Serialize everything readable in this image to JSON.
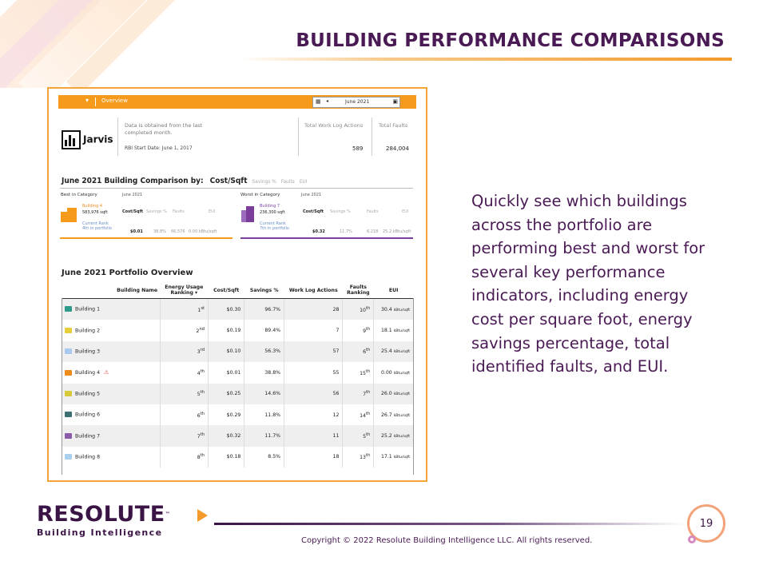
{
  "slide": {
    "title": "BUILDING PERFORMANCE COMPARISONS",
    "description": "Quickly see which buildings across the portfolio are performing best and worst for several key performance indicators, including energy cost per square foot, energy savings percentage, total identified faults, and EUI.",
    "page_number": "19",
    "copyright": "Copyright © 2022 Resolute Building Intelligence LLC. All rights reserved.",
    "brand_name": "RESOLUTE",
    "brand_tm": "™",
    "brand_sub": "Building Intelligence"
  },
  "screenshot": {
    "topbar": {
      "overview_label": "Overview",
      "date": "June 2021"
    },
    "logo_text": "Jarvis",
    "info_text": "Data is obtained from the last completed month.",
    "rbi_start": "RBI Start Date: June 1, 2017",
    "total_work_log_label": "Total Work Log Actions",
    "total_work_log_value": "589",
    "total_faults_label": "Total Faults",
    "total_faults_value": "284,004",
    "comparison": {
      "title": "June 2021 Building Comparison by:",
      "selected": "Cost/Sqft",
      "options": [
        "Savings %",
        "Faults",
        "EUI"
      ],
      "best": {
        "heading": "Best in Category",
        "month": "June 2021",
        "building": "Building 4",
        "sqft": "583,976 sqft",
        "rank_label": "Current Rank",
        "rank": "4th in portfolio",
        "cols": [
          "Cost/Sqft",
          "Savings %",
          "Faults",
          "EUI"
        ],
        "vals": [
          "$0.01",
          "38.8%",
          "66,576",
          "0.00 kBtu/sqft"
        ]
      },
      "worst": {
        "heading": "Worst in Category",
        "month": "June 2021",
        "building": "Building 7",
        "sqft": "236,300 sqft",
        "rank_label": "Current Rank",
        "rank": "7th in portfolio",
        "cols": [
          "Cost/Sqft",
          "Savings %",
          "Faults",
          "EUI"
        ],
        "vals": [
          "$0.32",
          "11.7%",
          "6,218",
          "25.2 kBtu/sqft"
        ]
      }
    },
    "overview": {
      "title": "June 2021 Portfolio Overview",
      "headers": [
        "Building Name",
        "Energy Usage Ranking",
        "Cost/Sqft",
        "Savings %",
        "Work Log Actions",
        "Faults Ranking",
        "EUI"
      ],
      "rows": [
        {
          "name": "Building 1",
          "color": "#2f9a8a",
          "rank": "1",
          "sup": "st",
          "cost": "$0.30",
          "sav": "96.7%",
          "wla": "28",
          "fr": "10",
          "frs": "th",
          "eui": "30.4",
          "warn": ""
        },
        {
          "name": "Building 2",
          "color": "#e6cf3a",
          "rank": "2",
          "sup": "nd",
          "cost": "$0.19",
          "sav": "89.4%",
          "wla": "7",
          "fr": "9",
          "frs": "th",
          "eui": "18.1",
          "warn": ""
        },
        {
          "name": "Building 3",
          "color": "#a9c9ee",
          "rank": "3",
          "sup": "rd",
          "cost": "$0.10",
          "sav": "56.3%",
          "wla": "57",
          "fr": "6",
          "frs": "th",
          "eui": "25.4",
          "warn": ""
        },
        {
          "name": "Building 4",
          "color": "#f08a1a",
          "rank": "4",
          "sup": "th",
          "cost": "$0.01",
          "sav": "38.8%",
          "wla": "55",
          "fr": "15",
          "frs": "th",
          "eui": "0.00",
          "warn": "⚠"
        },
        {
          "name": "Building 5",
          "color": "#d8c93b",
          "rank": "5",
          "sup": "th",
          "cost": "$0.25",
          "sav": "14.6%",
          "wla": "56",
          "fr": "7",
          "frs": "th",
          "eui": "26.0",
          "warn": ""
        },
        {
          "name": "Building 6",
          "color": "#3e6f73",
          "rank": "6",
          "sup": "th",
          "cost": "$0.29",
          "sav": "11.8%",
          "wla": "12",
          "fr": "14",
          "frs": "th",
          "eui": "26.7",
          "warn": ""
        },
        {
          "name": "Building 7",
          "color": "#8b5aa8",
          "rank": "7",
          "sup": "th",
          "cost": "$0.32",
          "sav": "11.7%",
          "wla": "11",
          "fr": "5",
          "frs": "th",
          "eui": "25.2",
          "warn": ""
        },
        {
          "name": "Building 8",
          "color": "#a9d0ee",
          "rank": "8",
          "sup": "th",
          "cost": "$0.18",
          "sav": "8.5%",
          "wla": "18",
          "fr": "13",
          "frs": "th",
          "eui": "17.1",
          "warn": ""
        }
      ],
      "eui_unit": "kBtu/sqft"
    }
  }
}
